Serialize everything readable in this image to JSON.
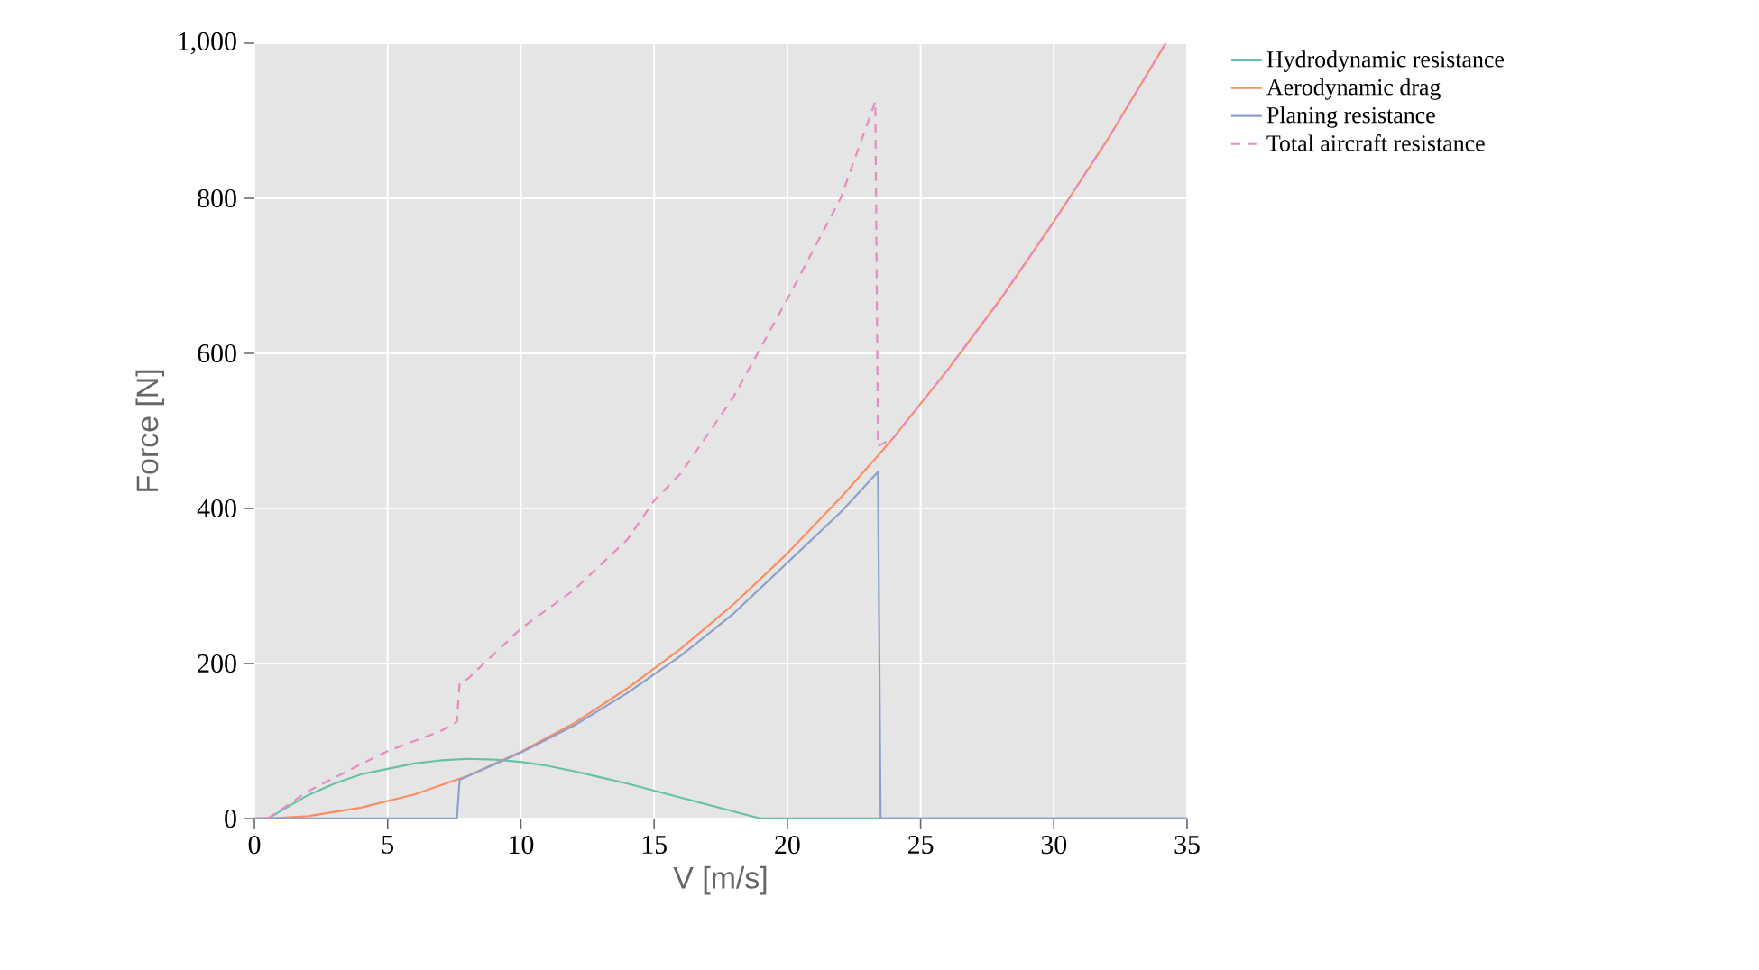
{
  "chart_data": {
    "type": "line",
    "xlabel": "V [m/s]",
    "ylabel": "Force [N]",
    "xlim": [
      0,
      35
    ],
    "ylim": [
      0,
      1000
    ],
    "xticks": [
      0,
      5,
      10,
      15,
      20,
      25,
      30,
      35
    ],
    "yticks": [
      0,
      200,
      400,
      600,
      800,
      {
        "value": 1000,
        "label": "1,000"
      }
    ],
    "grid": true,
    "legend": "top right",
    "marker": "none",
    "series": [
      {
        "name": "Hydrodynamic resistance",
        "color": "#66c2a5",
        "line_style": "solid",
        "x": [
          0.5,
          1,
          2,
          3,
          4,
          5,
          6,
          7,
          8,
          9,
          10,
          11,
          12,
          13,
          14,
          15,
          16,
          17,
          18,
          19,
          35
        ],
        "values": [
          0,
          10,
          30,
          45,
          57,
          64,
          71,
          75,
          77,
          76,
          73,
          68,
          61,
          53,
          45,
          36,
          27,
          18,
          9,
          0,
          0
        ]
      },
      {
        "name": "Aerodynamic drag",
        "color": "#fc8d62",
        "line_style": "solid",
        "x": [
          0,
          1,
          2,
          4,
          6,
          8,
          10,
          12,
          14,
          16,
          18,
          20,
          22,
          23.4,
          24,
          26,
          28,
          30,
          32,
          34.2
        ],
        "values": [
          0,
          1,
          3,
          14,
          31,
          55,
          86,
          123,
          168,
          219,
          277,
          342,
          414,
          468,
          492,
          578,
          670,
          770,
          875,
          1000
        ]
      },
      {
        "name": "Planing resistance",
        "color": "#8da0cb",
        "line_style": "solid",
        "x": [
          0,
          7.6,
          7.7,
          10,
          12,
          14,
          16,
          18,
          20,
          22,
          23.4,
          23.5,
          35
        ],
        "values": [
          0,
          0,
          50,
          85,
          120,
          162,
          210,
          265,
          330,
          395,
          447,
          0,
          0
        ]
      },
      {
        "name": "Total aircraft resistance",
        "color": "#e78ac3",
        "line_style": "dashed",
        "x": [
          0.5,
          2,
          4,
          5,
          6,
          7,
          7.6,
          7.7,
          8,
          10,
          12,
          14,
          15,
          16,
          18,
          20,
          22,
          23.3,
          23.4,
          24,
          26,
          28,
          30,
          32,
          34.2
        ],
        "values": [
          0,
          35,
          70,
          87,
          100,
          113,
          125,
          175,
          180,
          245,
          295,
          360,
          410,
          445,
          545,
          670,
          800,
          925,
          480,
          492,
          578,
          670,
          770,
          875,
          1000
        ]
      }
    ]
  }
}
